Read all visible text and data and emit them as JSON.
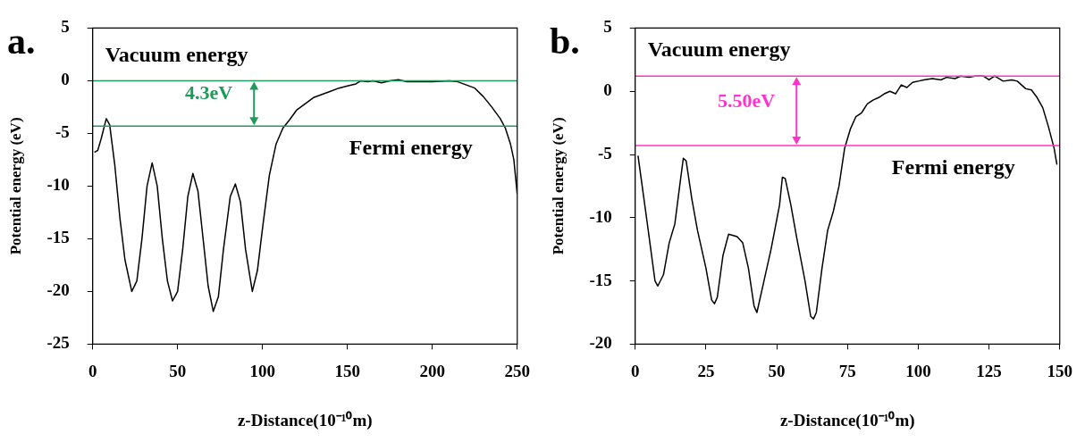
{
  "chart_data": [
    {
      "type": "line",
      "title": "a.",
      "xlabel": "z-Distance(10⁻¹⁰m)",
      "ylabel": "Potential energy (eV)",
      "xlim": [
        0,
        250
      ],
      "xticks": [
        0,
        50,
        100,
        150,
        200,
        250
      ],
      "ylim": [
        -25,
        5
      ],
      "yticks": [
        -25,
        -20,
        -15,
        -10,
        -5,
        0,
        5
      ],
      "grid": false,
      "legend": false,
      "marker": "none",
      "line_style": "solid",
      "x": [
        1,
        3,
        5,
        8,
        10,
        13,
        16,
        19,
        23,
        26,
        29,
        32,
        35,
        38,
        41,
        44,
        47,
        50,
        53,
        56,
        59,
        62,
        65,
        68,
        71,
        74,
        77,
        81,
        84,
        87,
        90,
        94,
        97,
        100,
        104,
        108,
        112,
        116,
        120,
        125,
        130,
        135,
        140,
        145,
        150,
        155,
        158,
        162,
        165,
        170,
        175,
        180,
        185,
        190,
        200,
        210,
        215,
        220,
        225,
        230,
        235,
        240,
        243,
        246,
        248,
        250
      ],
      "series": [
        {
          "color": "#000000",
          "values": [
            -6.8,
            -6.6,
            -5.5,
            -3.6,
            -4.2,
            -8,
            -13,
            -17,
            -20,
            -19,
            -15,
            -10,
            -7.8,
            -10,
            -15,
            -19,
            -20.9,
            -20,
            -16,
            -11,
            -8.8,
            -10.5,
            -15,
            -19.5,
            -21.9,
            -20.5,
            -16,
            -11,
            -9.8,
            -11.5,
            -16,
            -20,
            -18,
            -14,
            -9,
            -6,
            -4.5,
            -3.7,
            -2.8,
            -2.2,
            -1.6,
            -1.3,
            -1,
            -0.7,
            -0.5,
            -0.3,
            0,
            -0.1,
            0,
            -0.2,
            0,
            0.1,
            -0.1,
            -0.1,
            -0.1,
            0,
            -0.1,
            -0.4,
            -0.7,
            -1.5,
            -2.5,
            -3.6,
            -4.5,
            -6,
            -7.5,
            -10.8
          ]
        }
      ],
      "ref_lines": [
        {
          "axis": "y",
          "value": 0,
          "label": "Vacuum energy",
          "color": "#1f9a5a"
        },
        {
          "axis": "y",
          "value": -4.3,
          "label": "Fermi energy",
          "color": "#1f9a5a"
        }
      ],
      "annotations": [
        "4.3eV"
      ]
    },
    {
      "type": "line",
      "title": "b.",
      "xlabel": "z-Distance(10⁻¹⁰m)",
      "ylabel": "Potential energy (eV)",
      "xlim": [
        0,
        150
      ],
      "xticks": [
        0,
        25,
        50,
        75,
        100,
        125,
        150
      ],
      "ylim": [
        -20,
        5
      ],
      "yticks": [
        -20,
        -15,
        -10,
        -5,
        0,
        5
      ],
      "grid": false,
      "legend": false,
      "marker": "none",
      "line_style": "solid",
      "x": [
        1,
        4,
        7,
        8,
        10,
        12,
        14,
        16,
        17,
        18,
        20,
        22,
        25,
        27,
        28,
        29,
        31,
        33,
        36,
        38,
        40,
        42,
        43,
        45,
        48,
        51,
        52,
        53,
        55,
        57,
        60,
        62,
        63,
        64,
        66,
        68,
        70,
        72,
        74,
        76,
        78,
        80,
        82,
        84,
        86,
        88,
        90,
        92,
        94,
        96,
        98,
        100,
        102,
        105,
        108,
        110,
        113,
        115,
        118,
        120,
        123,
        125,
        127,
        130,
        133,
        135,
        138,
        140,
        142,
        144,
        146,
        148,
        149
      ],
      "series": [
        {
          "color": "#000000",
          "values": [
            -5.1,
            -10,
            -15,
            -15.4,
            -14.5,
            -12,
            -10.5,
            -7,
            -5.3,
            -5.5,
            -8.5,
            -11,
            -14,
            -16.5,
            -16.8,
            -16.3,
            -13,
            -11.3,
            -11.5,
            -12,
            -14,
            -17,
            -17.5,
            -15.5,
            -12.5,
            -9,
            -6.8,
            -6.9,
            -9,
            -11.5,
            -15,
            -17.8,
            -18,
            -17.5,
            -14,
            -11,
            -9.5,
            -7.5,
            -4.5,
            -3,
            -2,
            -1.7,
            -1,
            -0.7,
            -0.5,
            -0.2,
            0,
            -0.2,
            0.5,
            0.3,
            0.7,
            0.8,
            0.9,
            1,
            0.9,
            1.1,
            1,
            1.2,
            1.1,
            1.2,
            1.2,
            0.9,
            1.2,
            0.8,
            0.9,
            0.8,
            0.2,
            0.1,
            -0.5,
            -1.3,
            -2.8,
            -4.5,
            -5.8
          ]
        }
      ],
      "ref_lines": [
        {
          "axis": "y",
          "value": 1.2,
          "label": "Vacuum energy",
          "color": "#ff33cc"
        },
        {
          "axis": "y",
          "value": -4.3,
          "label": "Fermi energy",
          "color": "#ff33cc"
        }
      ],
      "annotations": [
        "5.50eV"
      ]
    }
  ]
}
